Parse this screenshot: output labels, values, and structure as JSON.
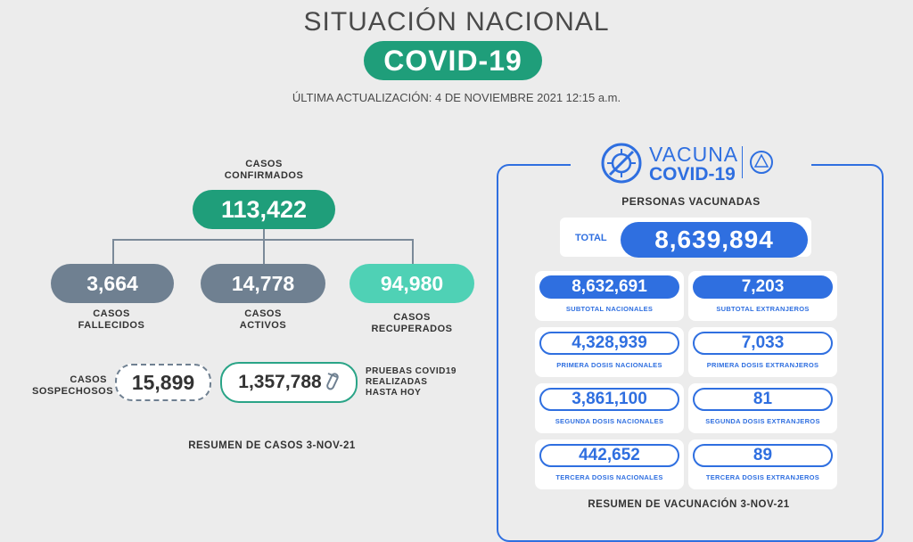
{
  "header": {
    "title": "SITUACIÓN NACIONAL",
    "badge": "COVID-19",
    "updated": "ÚLTIMA ACTUALIZACIÓN: 4 DE NOVIEMBRE 2021 12:15 a.m."
  },
  "cases": {
    "confirmed_label_1": "CASOS",
    "confirmed_label_2": "CONFIRMADOS",
    "confirmed": "113,422",
    "deaths": "3,664",
    "deaths_label_1": "CASOS",
    "deaths_label_2": "FALLECIDOS",
    "active": "14,778",
    "active_label_1": "CASOS",
    "active_label_2": "ACTIVOS",
    "recovered": "94,980",
    "recovered_label_1": "CASOS",
    "recovered_label_2": "RECUPERADOS",
    "suspects_label_1": "CASOS",
    "suspects_label_2": "SOSPECHOSOS",
    "suspects": "15,899",
    "tests": "1,357,788",
    "tests_label_1": "PRUEBAS COVID19",
    "tests_label_2": "REALIZADAS",
    "tests_label_3": "HASTA HOY",
    "summary": "RESUMEN DE CASOS 3-NOV-21"
  },
  "vaccination": {
    "logo_line_1": "VACUNA",
    "logo_line_2": "COVID-19",
    "people_label": "PERSONAS VACUNADAS",
    "total_label": "TOTAL",
    "total": "8,639,894",
    "cards": [
      {
        "value": "8,632,691",
        "label": "SUBTOTAL NACIONALES"
      },
      {
        "value": "7,203",
        "label": "SUBTOTAL EXTRANJEROS"
      },
      {
        "value": "4,328,939",
        "label": "PRIMERA DOSIS NACIONALES"
      },
      {
        "value": "7,033",
        "label": "PRIMERA DOSIS EXTRANJEROS"
      },
      {
        "value": "3,861,100",
        "label": "SEGUNDA DOSIS NACIONALES"
      },
      {
        "value": "81",
        "label": "SEGUNDA DOSIS EXTRANJEROS"
      },
      {
        "value": "442,652",
        "label": "TERCERA DOSIS NACIONALES"
      },
      {
        "value": "89",
        "label": "TERCERA DOSIS EXTRANJEROS"
      }
    ],
    "summary": "RESUMEN DE VACUNACIÓN 3-NOV-21"
  },
  "colors": {
    "green": "#1f9e7a",
    "mint": "#4fd1b5",
    "grey": "#6f8091",
    "blue": "#2f6fe0"
  }
}
